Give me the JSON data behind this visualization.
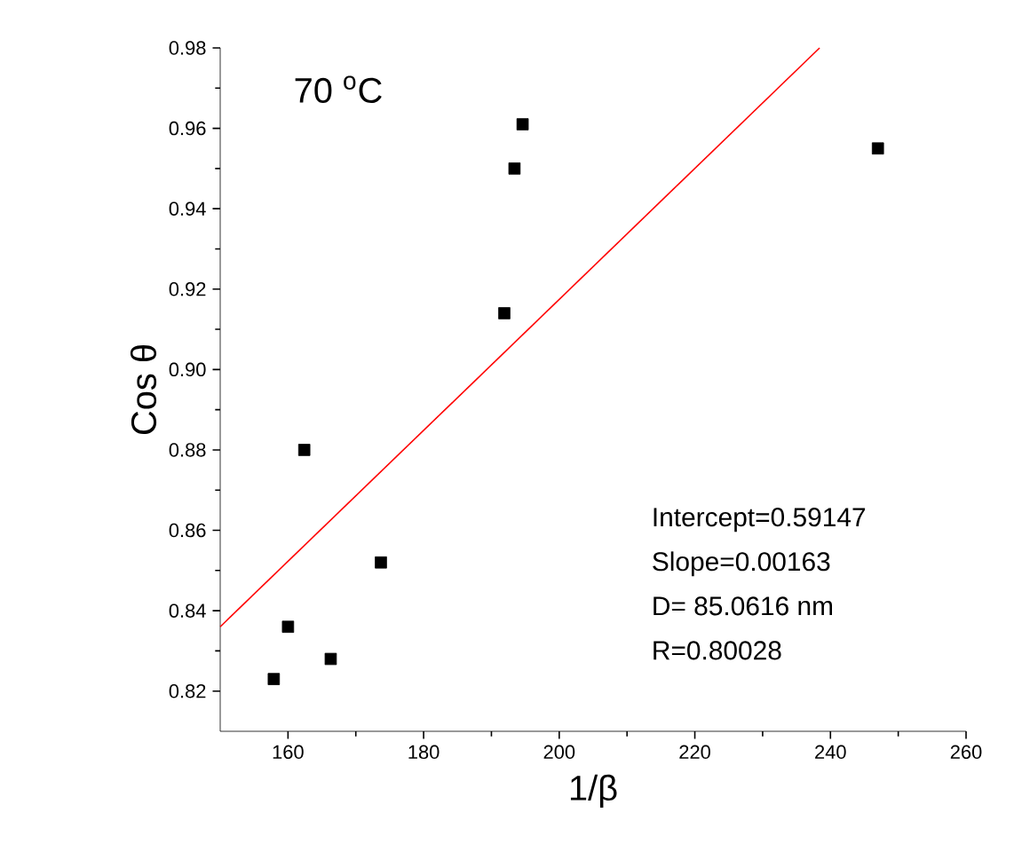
{
  "chart_data": {
    "type": "scatter",
    "xlabel": "1/β",
    "ylabel": "Cos θ",
    "xlim": [
      150,
      260
    ],
    "xticks": [
      160,
      180,
      200,
      220,
      240,
      260
    ],
    "ylim": [
      0.81,
      0.98
    ],
    "yticks": [
      0.82,
      0.84,
      0.86,
      0.88,
      {
        "value": 0.9,
        "label": "0.90"
      },
      0.92,
      0.94,
      0.96,
      0.98
    ],
    "series": [
      {
        "color": "#000000",
        "marker": "square",
        "x": [
          157.9,
          160.0,
          162.4,
          166.3,
          173.7,
          191.9,
          193.4,
          194.6,
          247.0
        ],
        "values": [
          0.823,
          0.836,
          0.88,
          0.828,
          0.852,
          0.914,
          0.95,
          0.961,
          0.955
        ]
      },
      {
        "type": "line",
        "color": "#ff0000",
        "marker": "none",
        "x": [
          150,
          238.4
        ],
        "values": [
          0.836,
          0.98
        ]
      }
    ],
    "annotations": [
      "70 $^{o}$C",
      "Intercept=0.59147",
      "Slope=0.00163",
      "D= 85.0616  nm",
      "R=0.80028"
    ]
  }
}
